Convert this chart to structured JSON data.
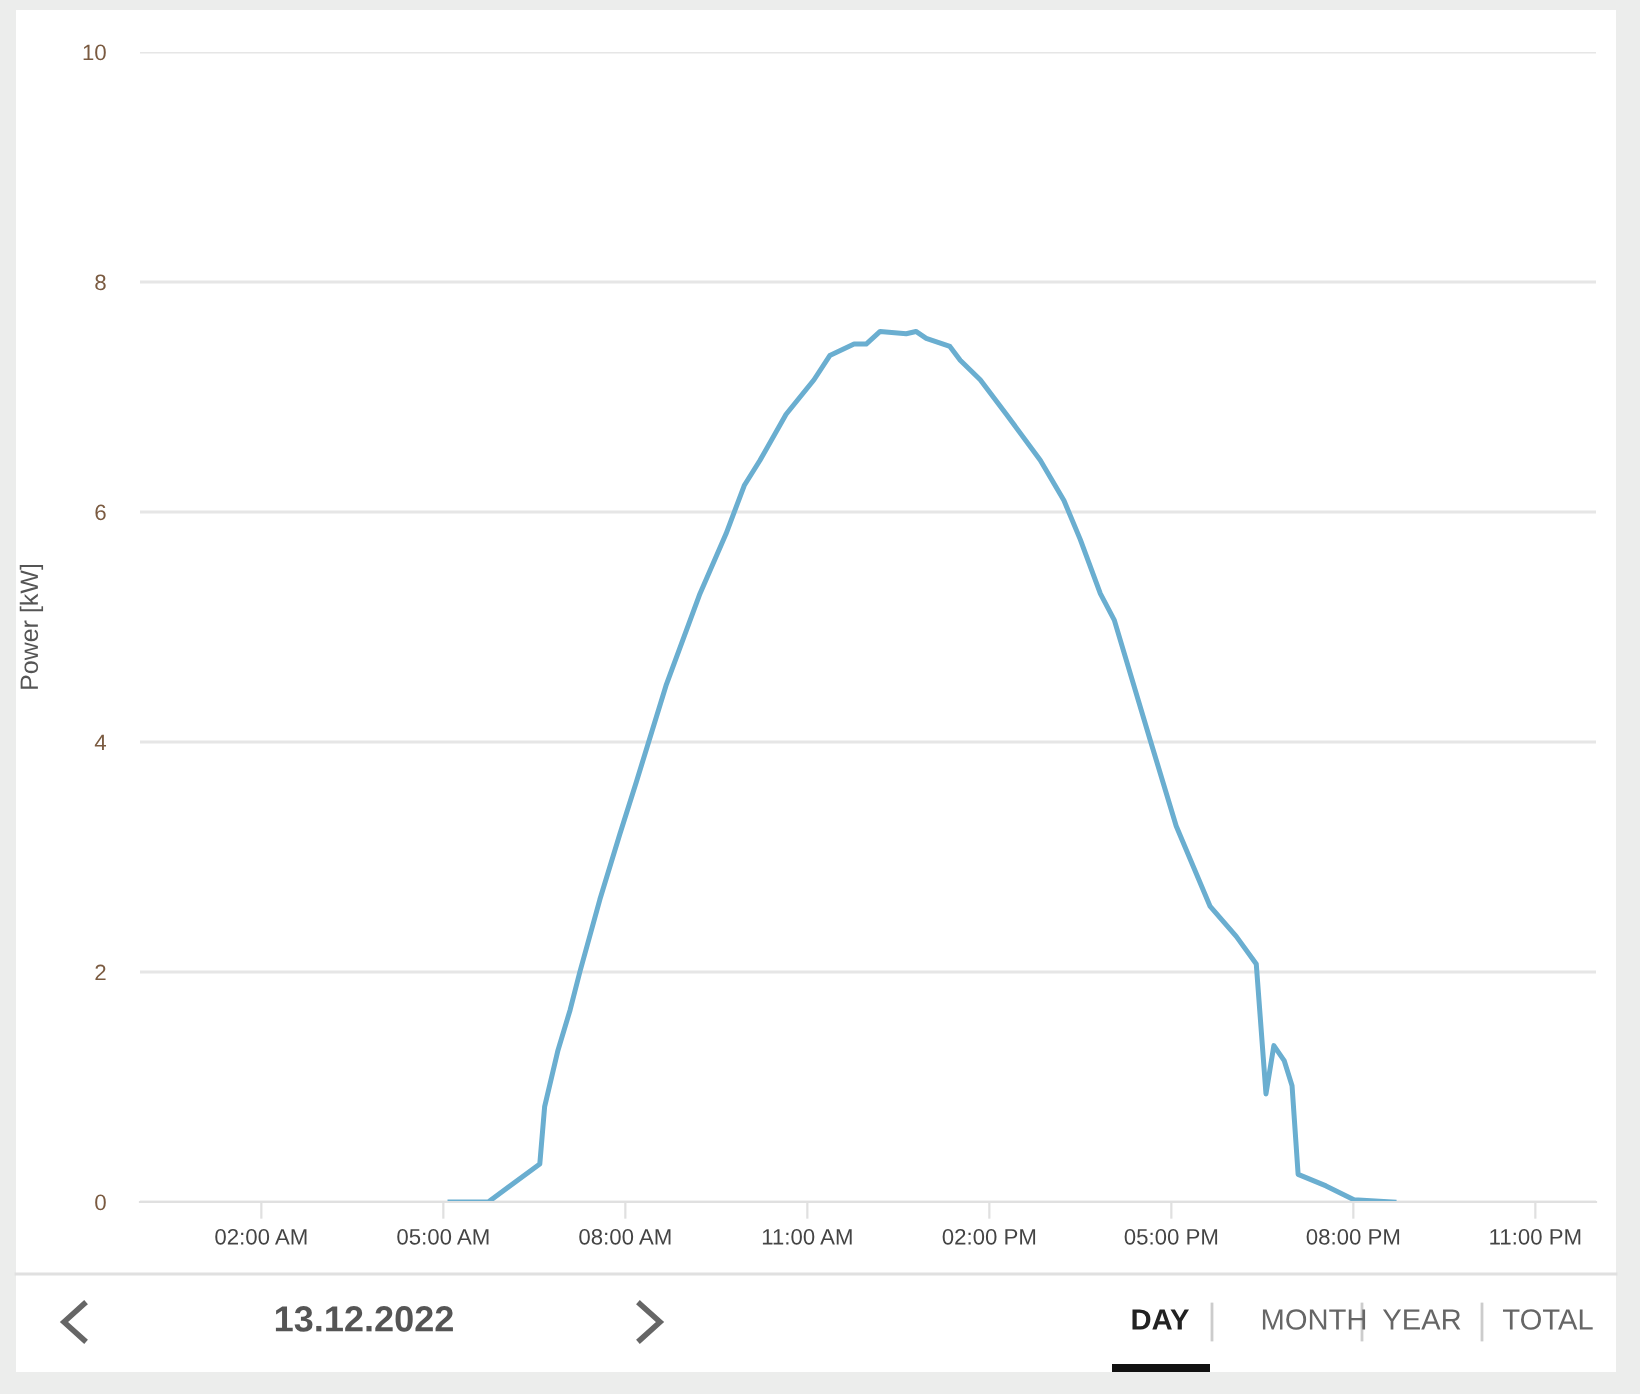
{
  "chart_data": {
    "type": "line",
    "ylabel": "Power [kW]",
    "x": [
      5.11,
      5.74,
      6.59,
      6.67,
      6.89,
      7.09,
      7.25,
      7.58,
      7.91,
      8.18,
      8.67,
      9.23,
      9.66,
      9.96,
      10.22,
      10.65,
      11.11,
      11.37,
      11.77,
      11.97,
      12.2,
      12.63,
      12.79,
      12.96,
      13.35,
      13.52,
      13.85,
      14.28,
      14.84,
      15.23,
      15.5,
      15.83,
      16.06,
      16.65,
      17.08,
      17.64,
      18.07,
      18.4,
      18.56,
      18.69,
      18.86,
      18.99,
      19.09,
      19.55,
      20.01,
      20.67
    ],
    "series": [
      {
        "color": "#6aaed0",
        "values": [
          0,
          0,
          0.33,
          0.83,
          1.32,
          1.67,
          2.0,
          2.63,
          3.2,
          3.65,
          4.49,
          5.29,
          5.81,
          6.23,
          6.45,
          6.85,
          7.15,
          7.36,
          7.46,
          7.46,
          7.57,
          7.55,
          7.57,
          7.51,
          7.44,
          7.32,
          7.15,
          6.85,
          6.45,
          6.1,
          5.76,
          5.29,
          5.06,
          4.02,
          3.27,
          2.57,
          2.31,
          2.07,
          0.94,
          1.36,
          1.23,
          1.01,
          0.24,
          0.14,
          0.02,
          0
        ]
      }
    ],
    "xlim": [
      0,
      24
    ],
    "xticks": [
      {
        "value": 2,
        "label": "02:00 AM"
      },
      {
        "value": 5,
        "label": "05:00 AM"
      },
      {
        "value": 8,
        "label": "08:00 AM"
      },
      {
        "value": 11,
        "label": "11:00 AM"
      },
      {
        "value": 14,
        "label": "02:00 PM"
      },
      {
        "value": 17,
        "label": "05:00 PM"
      },
      {
        "value": 20,
        "label": "08:00 PM"
      },
      {
        "value": 23,
        "label": "11:00 PM"
      }
    ],
    "ylim": [
      0,
      10
    ],
    "yticks": [
      0,
      2,
      4,
      6,
      8,
      10
    ],
    "grid": "y",
    "marker": "none",
    "line_style": "solid",
    "legend": false,
    "annotations": [
      "13.12.2022",
      "DAY",
      "MONTH",
      "YEAR",
      "TOTAL"
    ]
  }
}
